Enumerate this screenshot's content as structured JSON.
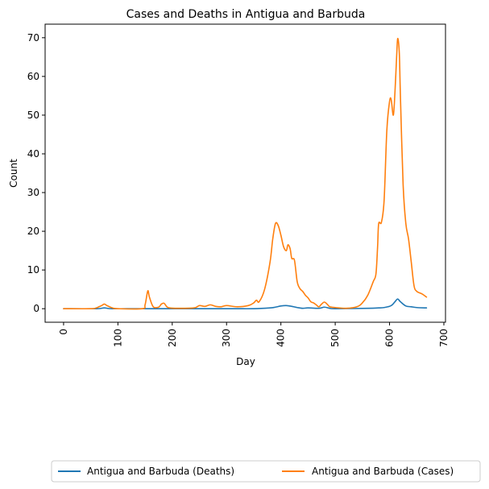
{
  "chart_data": {
    "type": "line",
    "title": "Cases and Deaths in Antigua and Barbuda",
    "xlabel": "Day",
    "ylabel": "Count",
    "xlim": [
      -34,
      703
    ],
    "ylim": [
      -3.5,
      73.5
    ],
    "xticks": [
      0,
      100,
      200,
      300,
      400,
      500,
      600,
      700
    ],
    "yticks": [
      0,
      10,
      20,
      30,
      40,
      50,
      60,
      70
    ],
    "grid": false,
    "legend_position": "bottom",
    "series": [
      {
        "name": "Antigua and Barbuda (Deaths)",
        "color": "#1f77b4",
        "x": [
          0,
          60,
          75,
          90,
          150,
          300,
          350,
          380,
          390,
          400,
          410,
          420,
          430,
          440,
          450,
          470,
          480,
          490,
          500,
          560,
          580,
          590,
          600,
          605,
          610,
          615,
          620,
          630,
          640,
          650,
          668
        ],
        "y": [
          0,
          0,
          0.2,
          0,
          0,
          0,
          0,
          0.2,
          0.4,
          0.7,
          0.8,
          0.6,
          0.3,
          0.1,
          0.2,
          0.1,
          0.4,
          0.1,
          0,
          0.1,
          0.2,
          0.3,
          0.6,
          1.0,
          1.8,
          2.5,
          1.8,
          0.7,
          0.5,
          0.3,
          0.2
        ]
      },
      {
        "name": "Antigua and Barbuda (Cases)",
        "color": "#ff7f0e",
        "x": [
          0,
          50,
          60,
          65,
          70,
          75,
          80,
          90,
          100,
          145,
          150,
          155,
          158,
          165,
          175,
          180,
          185,
          190,
          195,
          210,
          240,
          250,
          260,
          270,
          280,
          290,
          300,
          320,
          340,
          350,
          355,
          360,
          370,
          380,
          385,
          390,
          395,
          400,
          405,
          410,
          413,
          417,
          420,
          425,
          430,
          435,
          440,
          445,
          450,
          455,
          460,
          465,
          470,
          475,
          480,
          485,
          490,
          500,
          520,
          540,
          550,
          560,
          570,
          575,
          578,
          580,
          585,
          590,
          595,
          600,
          603,
          607,
          610,
          613,
          615,
          618,
          620,
          625,
          630,
          635,
          640,
          645,
          650,
          660,
          668
        ],
        "y": [
          0,
          0,
          0.2,
          0.5,
          0.8,
          1.2,
          0.8,
          0.2,
          0,
          0,
          1.0,
          4.6,
          3.0,
          0.5,
          0.4,
          1.2,
          1.4,
          0.5,
          0.2,
          0.1,
          0.2,
          0.8,
          0.6,
          1.0,
          0.6,
          0.5,
          0.8,
          0.5,
          0.8,
          1.5,
          2.2,
          1.8,
          5.0,
          12.0,
          18.0,
          22.0,
          21.5,
          19.0,
          16.0,
          15.0,
          16.5,
          15.5,
          13.0,
          12.5,
          7.0,
          5.2,
          4.5,
          3.5,
          2.8,
          1.8,
          1.5,
          1.0,
          0.5,
          1.2,
          1.7,
          1.2,
          0.5,
          0.3,
          0.1,
          0.5,
          1.5,
          3.5,
          7.0,
          9.0,
          16.0,
          22.0,
          22.3,
          28.0,
          46.0,
          53.5,
          54.0,
          50.0,
          56.0,
          65.0,
          69.8,
          66.0,
          55.0,
          32.0,
          22.0,
          18.0,
          12.0,
          6.0,
          4.5,
          3.8,
          3.0
        ]
      }
    ]
  }
}
